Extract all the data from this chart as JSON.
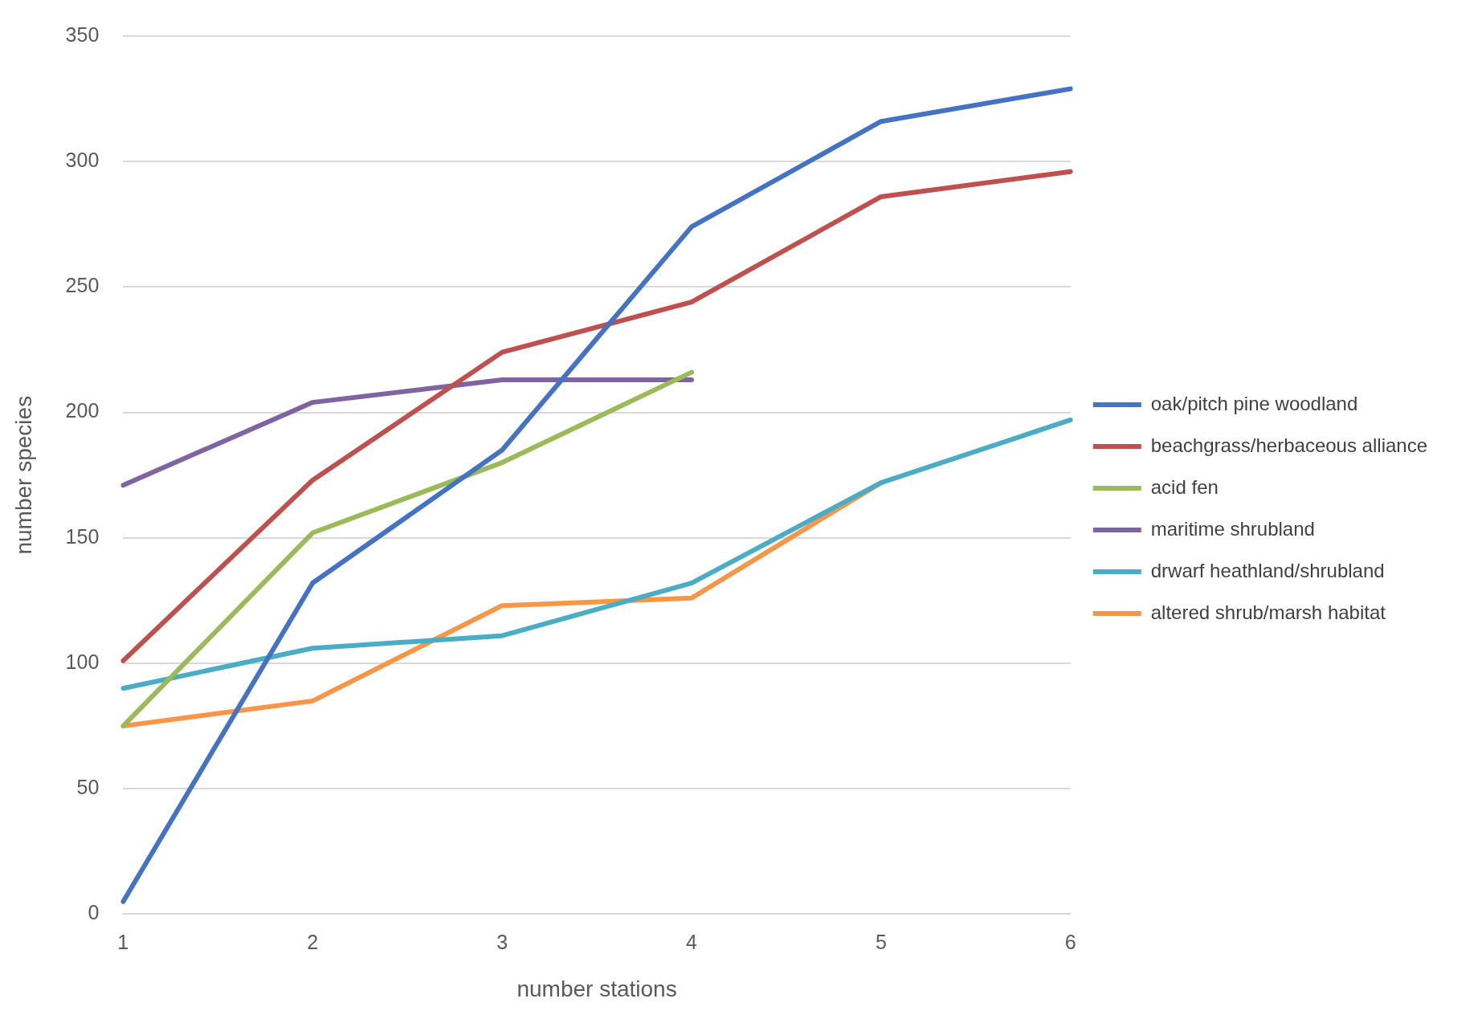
{
  "chart_data": {
    "type": "line",
    "xlabel": "number stations",
    "ylabel": "number species",
    "categories": [
      "1",
      "2",
      "3",
      "4",
      "5",
      "6"
    ],
    "series": [
      {
        "name": "oak/pitch pine woodland",
        "color": "#4472c4",
        "values": [
          5,
          132,
          185,
          274,
          316,
          329
        ]
      },
      {
        "name": "beachgrass/herbaceous alliance",
        "color": "#c0504d",
        "values": [
          101,
          173,
          224,
          244,
          286,
          296
        ]
      },
      {
        "name": "acid fen",
        "color": "#9bbb59",
        "values": [
          75,
          152,
          180,
          216,
          null,
          null
        ]
      },
      {
        "name": "maritime shrubland",
        "color": "#8064a2",
        "values": [
          171,
          204,
          213,
          213,
          null,
          null
        ]
      },
      {
        "name": "drwarf heathland/shrubland",
        "color": "#4bacc6",
        "values": [
          90,
          106,
          111,
          132,
          172,
          197
        ]
      },
      {
        "name": "altered shrub/marsh habitat",
        "color": "#f79646",
        "values": [
          75,
          85,
          123,
          126,
          172,
          null
        ]
      }
    ],
    "ylim": [
      0,
      350
    ],
    "yticks": [
      0,
      50,
      100,
      150,
      200,
      250,
      300,
      350
    ],
    "grid": "y",
    "legend": "right",
    "marker": "none",
    "line_style": "solid"
  }
}
